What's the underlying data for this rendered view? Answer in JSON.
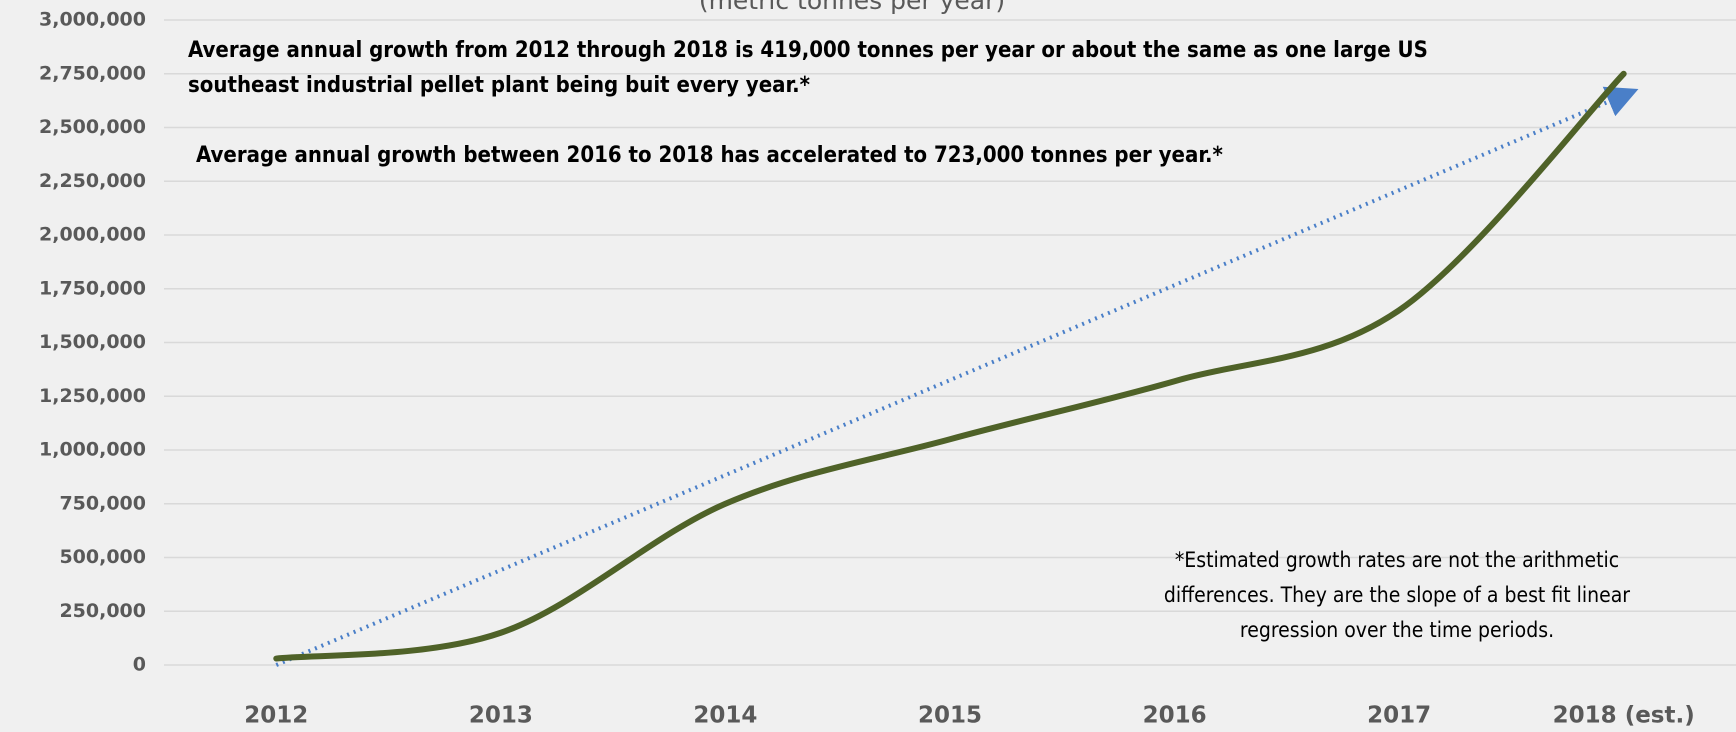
{
  "chart_data": {
    "type": "line",
    "subtitle": "(metric tonnes per year)",
    "categories": [
      "2012",
      "2013",
      "2014",
      "2015",
      "2016",
      "2017",
      "2018 (est.)"
    ],
    "series": [
      {
        "color": "#4f6228",
        "values": [
          30000,
          150000,
          750000,
          1050000,
          1320000,
          1650000,
          2750000
        ]
      }
    ],
    "trendline": {
      "color": "#4a7fc8",
      "values": [
        0,
        2650000
      ]
    },
    "smooth": true,
    "ylim": [
      0,
      3000000
    ],
    "yticks": [
      0,
      {
        "value": 250000,
        "label": "250,000"
      },
      {
        "value": 500000,
        "label": "500,000"
      },
      {
        "value": 750000,
        "label": "750,000"
      },
      {
        "value": 1000000,
        "label": "1,000,000"
      },
      {
        "value": 1250000,
        "label": "1,250,000"
      },
      {
        "value": 1500000,
        "label": "1,500,000"
      },
      {
        "value": 1750000,
        "label": "1,750,000"
      },
      {
        "value": 2000000,
        "label": "2,000,000"
      },
      {
        "value": 2250000,
        "label": "2,250,000"
      },
      {
        "value": 2500000,
        "label": "2,500,000"
      },
      {
        "value": 2750000,
        "label": "2,750,000"
      },
      {
        "value": 3000000,
        "label": "3,000,000"
      }
    ],
    "grid": true,
    "annotations": [
      [
        "Average annual growth from 2012 through 2018 is 419,000 tonnes per year or about the same as one large US",
        "southeast industrial pellet plant being buit every year.*"
      ],
      [
        "Average annual growth between 2016  to 2018 has accelerated to 723,000 tonnes per year.*"
      ],
      [
        "*Estimated growth rates are not the arithmetic",
        "differences.  They are the slope of a best fit linear",
        "regression over the time periods."
      ]
    ]
  }
}
